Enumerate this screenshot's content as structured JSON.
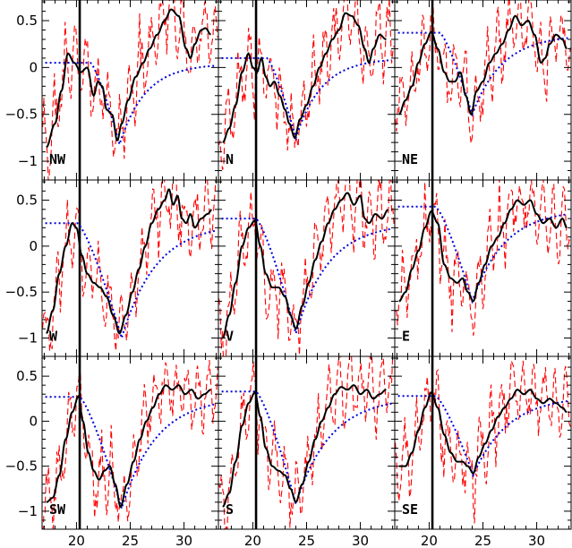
{
  "chart_data": {
    "type": "line",
    "layout": "3x3 small multiples with shared axes",
    "xlim": [
      16.8,
      33.2
    ],
    "ylim": [
      -1.2,
      0.72
    ],
    "x_ticks": [
      20,
      25,
      30
    ],
    "y_ticks": [
      -1,
      -0.5,
      0,
      0.5
    ],
    "x_tick_labels": [
      "20",
      "25",
      "30"
    ],
    "y_tick_labels": [
      "−1",
      "−0.5",
      "0",
      "0.5"
    ],
    "grid": false,
    "legend": "none",
    "colors": {
      "smooth": "#000000",
      "raw": "#ff0000",
      "model": "#0000dd"
    },
    "panels": [
      {
        "label": "NW",
        "vline": 20.3,
        "rawAmp": 0.35,
        "seed": 1,
        "model": {
          "plateau": 0.05,
          "t0": 21.3,
          "t1": 24.0,
          "min": -0.82,
          "tau": 2.4,
          "asym": 0.04
        },
        "smooth": [
          [
            17.2,
            -0.85
          ],
          [
            18.0,
            -0.6
          ],
          [
            18.6,
            -0.25
          ],
          [
            19.2,
            0.15
          ],
          [
            19.8,
            0.05
          ],
          [
            20.4,
            -0.05
          ],
          [
            21.0,
            0.0
          ],
          [
            21.6,
            -0.3
          ],
          [
            22.0,
            -0.15
          ],
          [
            22.4,
            -0.2
          ],
          [
            22.8,
            -0.45
          ],
          [
            23.3,
            -0.5
          ],
          [
            23.8,
            -0.78
          ],
          [
            24.2,
            -0.6
          ],
          [
            24.8,
            -0.35
          ],
          [
            25.5,
            -0.1
          ],
          [
            26.2,
            0.05
          ],
          [
            26.8,
            0.2
          ],
          [
            27.5,
            0.35
          ],
          [
            28.2,
            0.5
          ],
          [
            28.8,
            0.62
          ],
          [
            29.5,
            0.55
          ],
          [
            30.2,
            0.2
          ],
          [
            30.6,
            0.1
          ],
          [
            31.0,
            0.25
          ],
          [
            31.6,
            0.4
          ],
          [
            32.0,
            0.42
          ],
          [
            32.5,
            0.35
          ]
        ]
      },
      {
        "label": "N",
        "vline": 20.3,
        "rawAmp": 0.35,
        "seed": 2,
        "model": {
          "plateau": 0.1,
          "t0": 21.3,
          "t1": 24.0,
          "min": -0.75,
          "tau": 2.4,
          "asym": 0.1
        },
        "smooth": [
          [
            17.2,
            -0.8
          ],
          [
            17.8,
            -0.65
          ],
          [
            18.4,
            -0.4
          ],
          [
            19.0,
            -0.05
          ],
          [
            19.6,
            0.15
          ],
          [
            20.0,
            0.0
          ],
          [
            20.4,
            -0.05
          ],
          [
            20.8,
            0.1
          ],
          [
            21.2,
            -0.1
          ],
          [
            21.6,
            -0.2
          ],
          [
            22.0,
            -0.15
          ],
          [
            22.5,
            -0.3
          ],
          [
            23.0,
            -0.45
          ],
          [
            23.4,
            -0.6
          ],
          [
            23.9,
            -0.75
          ],
          [
            24.4,
            -0.55
          ],
          [
            25.0,
            -0.4
          ],
          [
            25.6,
            -0.2
          ],
          [
            26.2,
            0.0
          ],
          [
            26.8,
            0.15
          ],
          [
            27.4,
            0.3
          ],
          [
            28.0,
            0.4
          ],
          [
            28.6,
            0.58
          ],
          [
            29.2,
            0.55
          ],
          [
            29.8,
            0.45
          ],
          [
            30.4,
            0.2
          ],
          [
            30.8,
            0.05
          ],
          [
            31.2,
            0.2
          ],
          [
            31.8,
            0.35
          ],
          [
            32.4,
            0.3
          ]
        ]
      },
      {
        "label": "NE",
        "vline": 20.3,
        "rawAmp": 0.35,
        "seed": 3,
        "model": {
          "plateau": 0.37,
          "t0": 21.0,
          "t1": 24.0,
          "min": -0.5,
          "tau": 2.8,
          "asym": 0.35
        },
        "smooth": [
          [
            17.2,
            -0.5
          ],
          [
            17.8,
            -0.35
          ],
          [
            18.4,
            -0.2
          ],
          [
            19.0,
            0.05
          ],
          [
            19.6,
            0.25
          ],
          [
            20.2,
            0.38
          ],
          [
            20.8,
            0.2
          ],
          [
            21.4,
            -0.05
          ],
          [
            21.9,
            -0.15
          ],
          [
            22.4,
            -0.15
          ],
          [
            22.9,
            -0.05
          ],
          [
            23.4,
            -0.3
          ],
          [
            23.9,
            -0.5
          ],
          [
            24.4,
            -0.25
          ],
          [
            25.0,
            -0.15
          ],
          [
            25.6,
            0.05
          ],
          [
            26.2,
            0.15
          ],
          [
            26.8,
            0.25
          ],
          [
            27.4,
            0.4
          ],
          [
            28.0,
            0.55
          ],
          [
            28.6,
            0.45
          ],
          [
            29.2,
            0.5
          ],
          [
            29.8,
            0.35
          ],
          [
            30.4,
            0.05
          ],
          [
            30.8,
            0.1
          ],
          [
            31.2,
            0.25
          ],
          [
            31.8,
            0.35
          ],
          [
            32.4,
            0.3
          ],
          [
            32.8,
            0.2
          ]
        ]
      },
      {
        "label": "W",
        "vline": 20.3,
        "rawAmp": 0.35,
        "seed": 4,
        "model": {
          "plateau": 0.25,
          "t0": 20.1,
          "t1": 24.2,
          "min": -1.0,
          "tau": 3.2,
          "asym": 0.25
        },
        "smooth": [
          [
            17.2,
            -0.95
          ],
          [
            17.8,
            -0.7
          ],
          [
            18.4,
            -0.3
          ],
          [
            19.0,
            0.0
          ],
          [
            19.6,
            0.25
          ],
          [
            20.0,
            0.2
          ],
          [
            20.5,
            -0.1
          ],
          [
            21.0,
            -0.3
          ],
          [
            21.6,
            -0.4
          ],
          [
            22.2,
            -0.45
          ],
          [
            22.8,
            -0.55
          ],
          [
            23.4,
            -0.75
          ],
          [
            24.0,
            -0.95
          ],
          [
            24.6,
            -0.75
          ],
          [
            25.2,
            -0.5
          ],
          [
            25.8,
            -0.25
          ],
          [
            26.4,
            0.0
          ],
          [
            27.0,
            0.25
          ],
          [
            27.6,
            0.4
          ],
          [
            28.2,
            0.5
          ],
          [
            28.6,
            0.62
          ],
          [
            29.0,
            0.45
          ],
          [
            29.4,
            0.55
          ],
          [
            29.8,
            0.3
          ],
          [
            30.2,
            0.25
          ],
          [
            30.6,
            0.35
          ],
          [
            31.0,
            0.2
          ],
          [
            31.6,
            0.3
          ],
          [
            32.2,
            0.35
          ],
          [
            32.6,
            0.4
          ]
        ]
      },
      {
        "label": "V",
        "vline": 20.3,
        "rawAmp": 0.35,
        "seed": 5,
        "model": {
          "plateau": 0.3,
          "t0": 20.3,
          "t1": 24.0,
          "min": -0.95,
          "tau": 3.0,
          "asym": 0.25
        },
        "smooth": [
          [
            17.2,
            -1.0
          ],
          [
            17.8,
            -0.75
          ],
          [
            18.4,
            -0.4
          ],
          [
            19.0,
            0.0
          ],
          [
            19.6,
            0.2
          ],
          [
            20.2,
            0.28
          ],
          [
            20.7,
            0.0
          ],
          [
            21.2,
            -0.3
          ],
          [
            21.8,
            -0.45
          ],
          [
            22.4,
            -0.45
          ],
          [
            23.0,
            -0.55
          ],
          [
            23.5,
            -0.75
          ],
          [
            24.0,
            -0.9
          ],
          [
            24.6,
            -0.65
          ],
          [
            25.2,
            -0.4
          ],
          [
            25.8,
            -0.15
          ],
          [
            26.4,
            0.05
          ],
          [
            27.0,
            0.25
          ],
          [
            27.6,
            0.4
          ],
          [
            28.2,
            0.5
          ],
          [
            28.8,
            0.58
          ],
          [
            29.4,
            0.45
          ],
          [
            30.0,
            0.55
          ],
          [
            30.4,
            0.3
          ],
          [
            30.8,
            0.25
          ],
          [
            31.4,
            0.35
          ],
          [
            32.0,
            0.3
          ],
          [
            32.6,
            0.4
          ]
        ]
      },
      {
        "label": "E",
        "vline": 20.3,
        "rawAmp": 0.35,
        "seed": 6,
        "model": {
          "plateau": 0.43,
          "t0": 20.6,
          "t1": 24.0,
          "min": -0.6,
          "tau": 3.0,
          "asym": 0.4
        },
        "smooth": [
          [
            17.2,
            -0.6
          ],
          [
            17.8,
            -0.5
          ],
          [
            18.4,
            -0.25
          ],
          [
            19.0,
            -0.05
          ],
          [
            19.6,
            0.2
          ],
          [
            20.2,
            0.38
          ],
          [
            20.8,
            0.25
          ],
          [
            21.4,
            -0.2
          ],
          [
            22.0,
            -0.35
          ],
          [
            22.6,
            -0.4
          ],
          [
            23.1,
            -0.35
          ],
          [
            23.6,
            -0.5
          ],
          [
            24.1,
            -0.6
          ],
          [
            24.6,
            -0.4
          ],
          [
            25.2,
            -0.2
          ],
          [
            25.8,
            0.0
          ],
          [
            26.4,
            0.1
          ],
          [
            27.0,
            0.25
          ],
          [
            27.6,
            0.4
          ],
          [
            28.2,
            0.5
          ],
          [
            28.8,
            0.45
          ],
          [
            29.4,
            0.5
          ],
          [
            30.0,
            0.35
          ],
          [
            30.6,
            0.25
          ],
          [
            31.2,
            0.3
          ],
          [
            31.8,
            0.2
          ],
          [
            32.4,
            0.3
          ],
          [
            32.8,
            0.2
          ]
        ]
      },
      {
        "label": "SW",
        "vline": 20.3,
        "rawAmp": 0.35,
        "seed": 7,
        "model": {
          "plateau": 0.27,
          "t0": 20.3,
          "t1": 24.2,
          "min": -0.97,
          "tau": 3.2,
          "asym": 0.27
        },
        "smooth": [
          [
            17.2,
            -0.9
          ],
          [
            17.8,
            -0.85
          ],
          [
            18.4,
            -0.6
          ],
          [
            19.0,
            -0.2
          ],
          [
            19.6,
            0.1
          ],
          [
            20.2,
            0.28
          ],
          [
            20.6,
            0.0
          ],
          [
            21.1,
            -0.35
          ],
          [
            21.6,
            -0.55
          ],
          [
            22.1,
            -0.65
          ],
          [
            22.6,
            -0.55
          ],
          [
            23.1,
            -0.5
          ],
          [
            23.6,
            -0.7
          ],
          [
            24.1,
            -0.95
          ],
          [
            24.7,
            -0.7
          ],
          [
            25.3,
            -0.45
          ],
          [
            25.9,
            -0.2
          ],
          [
            26.5,
            0.0
          ],
          [
            27.1,
            0.15
          ],
          [
            27.7,
            0.3
          ],
          [
            28.3,
            0.4
          ],
          [
            28.9,
            0.35
          ],
          [
            29.5,
            0.4
          ],
          [
            30.1,
            0.3
          ],
          [
            30.7,
            0.35
          ],
          [
            31.3,
            0.25
          ],
          [
            31.9,
            0.3
          ],
          [
            32.5,
            0.35
          ]
        ]
      },
      {
        "label": "S",
        "vline": 20.3,
        "rawAmp": 0.35,
        "seed": 8,
        "model": {
          "plateau": 0.33,
          "t0": 20.3,
          "t1": 24.0,
          "min": -0.92,
          "tau": 3.2,
          "asym": 0.27
        },
        "smooth": [
          [
            17.2,
            -0.95
          ],
          [
            17.8,
            -0.8
          ],
          [
            18.4,
            -0.45
          ],
          [
            19.0,
            -0.05
          ],
          [
            19.6,
            0.2
          ],
          [
            20.2,
            0.32
          ],
          [
            20.7,
            0.05
          ],
          [
            21.2,
            -0.3
          ],
          [
            21.8,
            -0.5
          ],
          [
            22.4,
            -0.55
          ],
          [
            23.0,
            -0.6
          ],
          [
            23.5,
            -0.75
          ],
          [
            24.0,
            -0.9
          ],
          [
            24.6,
            -0.7
          ],
          [
            25.2,
            -0.45
          ],
          [
            25.8,
            -0.2
          ],
          [
            26.4,
            0.0
          ],
          [
            27.0,
            0.15
          ],
          [
            27.6,
            0.3
          ],
          [
            28.2,
            0.38
          ],
          [
            28.8,
            0.35
          ],
          [
            29.4,
            0.4
          ],
          [
            30.0,
            0.3
          ],
          [
            30.6,
            0.35
          ],
          [
            31.2,
            0.25
          ],
          [
            31.8,
            0.3
          ],
          [
            32.4,
            0.35
          ]
        ]
      },
      {
        "label": "SE",
        "vline": 20.3,
        "rawAmp": 0.35,
        "seed": 9,
        "model": {
          "plateau": 0.28,
          "t0": 20.6,
          "t1": 24.1,
          "min": -0.6,
          "tau": 3.2,
          "asym": 0.28
        },
        "smooth": [
          [
            17.2,
            -0.5
          ],
          [
            17.8,
            -0.5
          ],
          [
            18.4,
            -0.35
          ],
          [
            19.0,
            -0.1
          ],
          [
            19.6,
            0.15
          ],
          [
            20.2,
            0.32
          ],
          [
            20.8,
            0.15
          ],
          [
            21.4,
            -0.15
          ],
          [
            22.0,
            -0.35
          ],
          [
            22.6,
            -0.45
          ],
          [
            23.1,
            -0.45
          ],
          [
            23.6,
            -0.5
          ],
          [
            24.1,
            -0.58
          ],
          [
            24.6,
            -0.4
          ],
          [
            25.2,
            -0.25
          ],
          [
            25.8,
            -0.1
          ],
          [
            26.4,
            0.05
          ],
          [
            27.0,
            0.15
          ],
          [
            27.6,
            0.25
          ],
          [
            28.2,
            0.35
          ],
          [
            28.8,
            0.3
          ],
          [
            29.4,
            0.35
          ],
          [
            30.0,
            0.25
          ],
          [
            30.6,
            0.2
          ],
          [
            31.2,
            0.25
          ],
          [
            31.8,
            0.2
          ],
          [
            32.4,
            0.15
          ],
          [
            32.8,
            0.1
          ]
        ]
      }
    ]
  }
}
